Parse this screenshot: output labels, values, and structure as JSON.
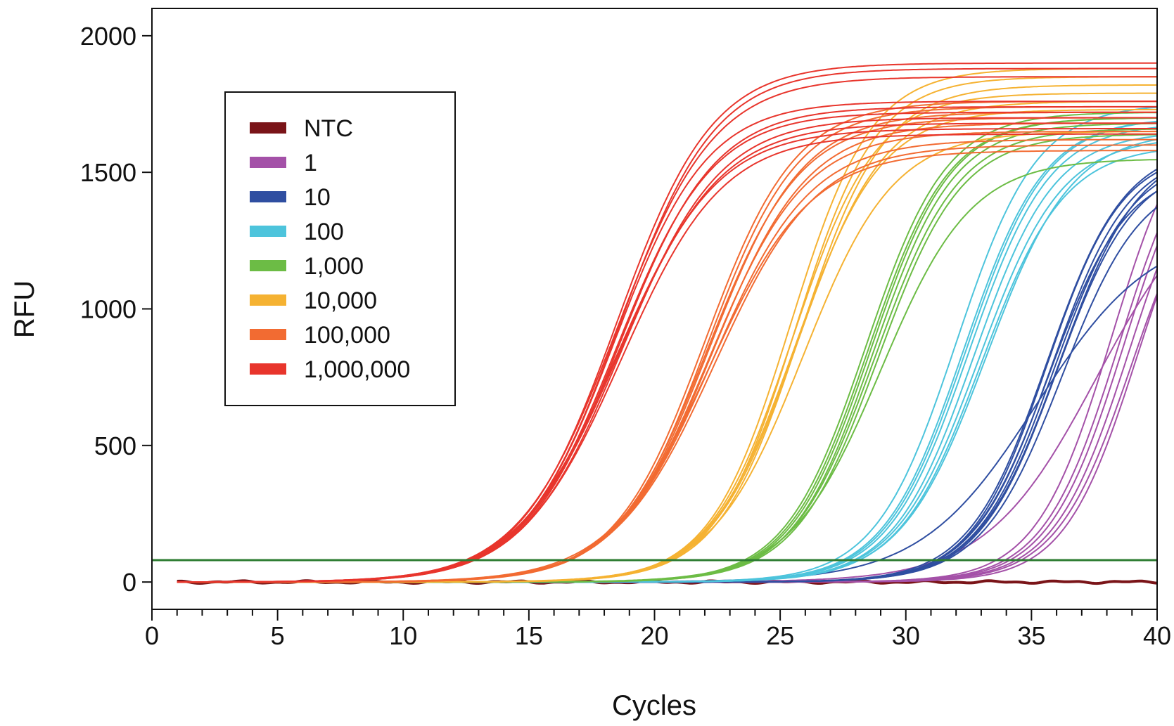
{
  "chart_data": {
    "type": "line",
    "title": "",
    "xlabel": "Cycles",
    "ylabel": "RFU",
    "xlim": [
      0,
      40
    ],
    "ylim": [
      -100,
      2100
    ],
    "x_ticks": [
      0,
      5,
      10,
      15,
      20,
      25,
      30,
      35,
      40
    ],
    "x_tick_labels": [
      "0",
      "5",
      "10",
      "15",
      "20",
      "25",
      "30",
      "35",
      "40"
    ],
    "x_minor_tick_step": 1,
    "y_ticks": [
      0,
      500,
      1000,
      1500,
      2000
    ],
    "y_tick_labels": [
      "0",
      "500",
      "1000",
      "1500",
      "2000"
    ],
    "grid": false,
    "legend_position": "upper-left",
    "threshold": {
      "y": 80,
      "color": "#2e7d32"
    },
    "x_range_of_curves": [
      1,
      40
    ],
    "series": [
      {
        "name": "NTC",
        "color": "#7a1418",
        "replicates": [
          {
            "plateau": 0,
            "ct_mid": 0,
            "slope": 1
          }
        ]
      },
      {
        "name": "1",
        "color": "#a451a8",
        "replicates": [
          {
            "plateau": 1800,
            "ct_mid": 38.2,
            "slope": 1.5
          },
          {
            "plateau": 1750,
            "ct_mid": 38.5,
            "slope": 1.5
          },
          {
            "plateau": 1700,
            "ct_mid": 38.9,
            "slope": 1.5
          },
          {
            "plateau": 1650,
            "ct_mid": 39.2,
            "slope": 1.45
          },
          {
            "plateau": 1750,
            "ct_mid": 38.7,
            "slope": 1.5
          },
          {
            "plateau": 1600,
            "ct_mid": 39.0,
            "slope": 1.5
          },
          {
            "plateau": 1500,
            "ct_mid": 37.6,
            "slope": 2.2
          }
        ]
      },
      {
        "name": "10",
        "color": "#2f4ea1",
        "replicates": [
          {
            "plateau": 1600,
            "ct_mid": 35.6,
            "slope": 1.55
          },
          {
            "plateau": 1580,
            "ct_mid": 35.8,
            "slope": 1.55
          },
          {
            "plateau": 1560,
            "ct_mid": 35.9,
            "slope": 1.55
          },
          {
            "plateau": 1540,
            "ct_mid": 36.0,
            "slope": 1.55
          },
          {
            "plateau": 1600,
            "ct_mid": 36.1,
            "slope": 1.6
          },
          {
            "plateau": 1520,
            "ct_mid": 35.7,
            "slope": 1.55
          },
          {
            "plateau": 1580,
            "ct_mid": 35.6,
            "slope": 1.5
          },
          {
            "plateau": 1500,
            "ct_mid": 36.2,
            "slope": 1.6
          },
          {
            "plateau": 1300,
            "ct_mid": 35.2,
            "slope": 2.3
          }
        ]
      },
      {
        "name": "100",
        "color": "#4dc4dc",
        "replicates": [
          {
            "plateau": 1750,
            "ct_mid": 32.0,
            "slope": 1.6
          },
          {
            "plateau": 1700,
            "ct_mid": 32.3,
            "slope": 1.6
          },
          {
            "plateau": 1680,
            "ct_mid": 32.5,
            "slope": 1.6
          },
          {
            "plateau": 1650,
            "ct_mid": 32.7,
            "slope": 1.6
          },
          {
            "plateau": 1630,
            "ct_mid": 32.9,
            "slope": 1.65
          },
          {
            "plateau": 1600,
            "ct_mid": 33.0,
            "slope": 1.65
          },
          {
            "plateau": 1700,
            "ct_mid": 32.4,
            "slope": 1.6
          },
          {
            "plateau": 1650,
            "ct_mid": 33.2,
            "slope": 1.7
          }
        ]
      },
      {
        "name": "1,000",
        "color": "#6cbc45",
        "replicates": [
          {
            "plateau": 1720,
            "ct_mid": 28.4,
            "slope": 1.6
          },
          {
            "plateau": 1700,
            "ct_mid": 28.6,
            "slope": 1.6
          },
          {
            "plateau": 1680,
            "ct_mid": 28.7,
            "slope": 1.6
          },
          {
            "plateau": 1660,
            "ct_mid": 28.8,
            "slope": 1.65
          },
          {
            "plateau": 1640,
            "ct_mid": 28.9,
            "slope": 1.65
          },
          {
            "plateau": 1700,
            "ct_mid": 28.5,
            "slope": 1.6
          },
          {
            "plateau": 1550,
            "ct_mid": 29.0,
            "slope": 1.8
          }
        ]
      },
      {
        "name": "10,000",
        "color": "#f5b232",
        "replicates": [
          {
            "plateau": 1880,
            "ct_mid": 25.4,
            "slope": 1.6
          },
          {
            "plateau": 1850,
            "ct_mid": 25.6,
            "slope": 1.6
          },
          {
            "plateau": 1820,
            "ct_mid": 25.8,
            "slope": 1.65
          },
          {
            "plateau": 1790,
            "ct_mid": 25.5,
            "slope": 1.65
          },
          {
            "plateau": 1760,
            "ct_mid": 25.7,
            "slope": 1.7
          },
          {
            "plateau": 1730,
            "ct_mid": 25.6,
            "slope": 1.7
          },
          {
            "plateau": 1650,
            "ct_mid": 25.9,
            "slope": 1.8
          }
        ]
      },
      {
        "name": "100,000",
        "color": "#f26b32",
        "replicates": [
          {
            "plateau": 1760,
            "ct_mid": 22.0,
            "slope": 1.8
          },
          {
            "plateau": 1740,
            "ct_mid": 22.1,
            "slope": 1.8
          },
          {
            "plateau": 1720,
            "ct_mid": 22.2,
            "slope": 1.85
          },
          {
            "plateau": 1700,
            "ct_mid": 22.1,
            "slope": 1.85
          },
          {
            "plateau": 1680,
            "ct_mid": 22.3,
            "slope": 1.9
          },
          {
            "plateau": 1650,
            "ct_mid": 22.2,
            "slope": 1.9
          },
          {
            "plateau": 1620,
            "ct_mid": 22.3,
            "slope": 1.95
          },
          {
            "plateau": 1600,
            "ct_mid": 22.4,
            "slope": 2.0
          },
          {
            "plateau": 1580,
            "ct_mid": 22.2,
            "slope": 2.0
          }
        ]
      },
      {
        "name": "1,000,000",
        "color": "#e8352c",
        "replicates": [
          {
            "plateau": 1900,
            "ct_mid": 18.5,
            "slope": 1.9
          },
          {
            "plateau": 1880,
            "ct_mid": 18.6,
            "slope": 1.9
          },
          {
            "plateau": 1850,
            "ct_mid": 18.5,
            "slope": 1.95
          },
          {
            "plateau": 1760,
            "ct_mid": 18.4,
            "slope": 1.85
          },
          {
            "plateau": 1740,
            "ct_mid": 18.6,
            "slope": 1.9
          },
          {
            "plateau": 1720,
            "ct_mid": 18.5,
            "slope": 1.9
          },
          {
            "plateau": 1700,
            "ct_mid": 18.7,
            "slope": 1.95
          },
          {
            "plateau": 1680,
            "ct_mid": 18.6,
            "slope": 2.0
          },
          {
            "plateau": 1660,
            "ct_mid": 18.5,
            "slope": 2.0
          },
          {
            "plateau": 1640,
            "ct_mid": 18.7,
            "slope": 2.0
          }
        ]
      }
    ]
  }
}
